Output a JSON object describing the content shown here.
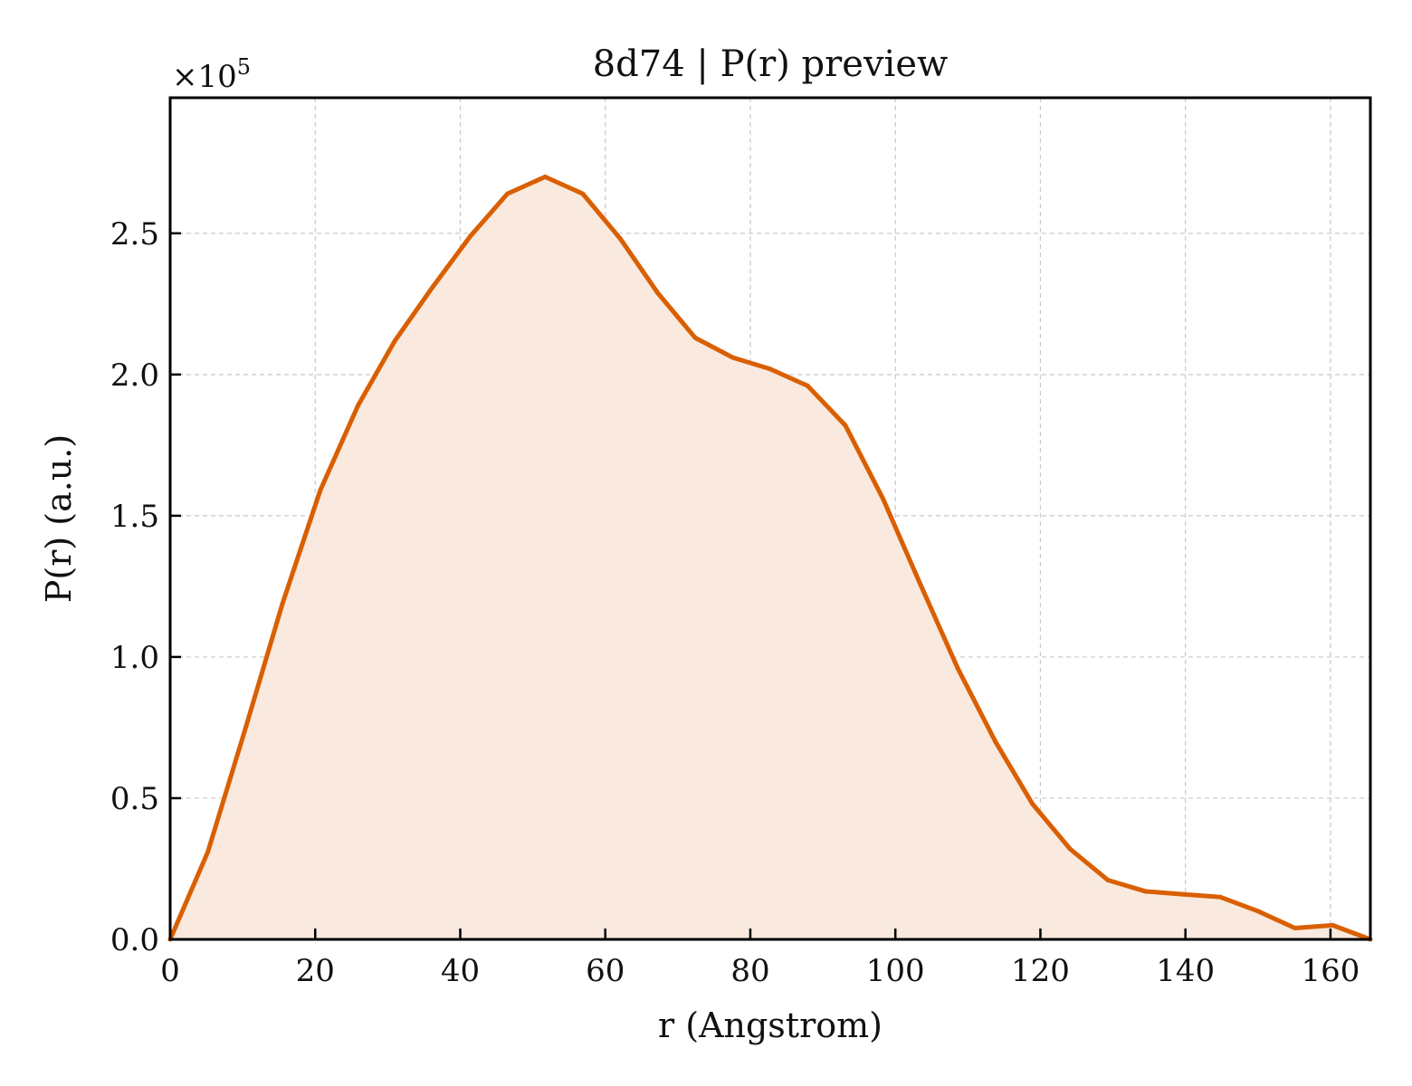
{
  "chart_data": {
    "type": "area",
    "title": "8d74 | P(r) preview",
    "xlabel": "r (Angstrom)",
    "ylabel": "P(r) (a.u.)",
    "y_offset_base": "×10",
    "y_offset_exponent": "5",
    "xlim": [
      0,
      165.5
    ],
    "ylim": [
      0,
      2.98
    ],
    "xticks": [
      0,
      20,
      40,
      60,
      80,
      100,
      120,
      140,
      160
    ],
    "xtick_labels": [
      "0",
      "20",
      "40",
      "60",
      "80",
      "100",
      "120",
      "140",
      "160"
    ],
    "yticks": [
      0,
      0.5,
      1.0,
      1.5,
      2.0,
      2.5
    ],
    "ytick_labels": [
      "0.0",
      "0.5",
      "1.0",
      "1.5",
      "2.0",
      "2.5"
    ],
    "grid": true,
    "series": [
      {
        "x": [
          0,
          5.2,
          10.3,
          15.5,
          20.7,
          25.9,
          31.0,
          36.2,
          41.4,
          46.5,
          51.7,
          56.9,
          62.1,
          67.2,
          72.4,
          77.6,
          82.7,
          87.9,
          93.1,
          98.3,
          103.4,
          108.6,
          113.8,
          118.9,
          124.1,
          129.3,
          134.5,
          139.6,
          144.8,
          150.0,
          155.1,
          160.3,
          165.5
        ],
        "y": [
          0.0,
          0.31,
          0.74,
          1.19,
          1.59,
          1.89,
          2.12,
          2.31,
          2.49,
          2.64,
          2.7,
          2.64,
          2.48,
          2.29,
          2.13,
          2.06,
          2.02,
          1.96,
          1.82,
          1.56,
          1.26,
          0.96,
          0.7,
          0.48,
          0.32,
          0.21,
          0.17,
          0.16,
          0.15,
          0.1,
          0.04,
          0.05,
          0.0
        ]
      }
    ],
    "line_color": "#d95f02",
    "fill_color": "#f9e9de"
  }
}
